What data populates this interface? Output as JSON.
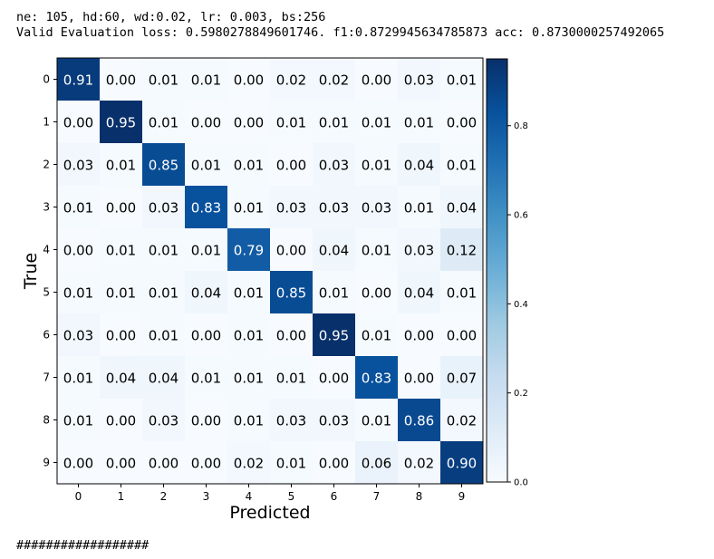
{
  "header": {
    "params_line": "ne: 105, hd:60, wd:0.02, lr: 0.003, bs:256",
    "eval_line": "Valid Evaluation loss: 0.5980278849601746. f1:0.8729945634785873 acc: 0.8730000257492065"
  },
  "footer": {
    "text": "##################"
  },
  "chart_data": {
    "type": "heatmap",
    "xlabel": "Predicted",
    "ylabel": "True",
    "x_categories": [
      "0",
      "1",
      "2",
      "3",
      "4",
      "5",
      "6",
      "7",
      "8",
      "9"
    ],
    "y_categories": [
      "0",
      "1",
      "2",
      "3",
      "4",
      "5",
      "6",
      "7",
      "8",
      "9"
    ],
    "values": [
      [
        0.91,
        0.0,
        0.01,
        0.01,
        0.0,
        0.02,
        0.02,
        0.0,
        0.03,
        0.01
      ],
      [
        0.0,
        0.95,
        0.01,
        0.0,
        0.0,
        0.01,
        0.01,
        0.01,
        0.01,
        0.0
      ],
      [
        0.03,
        0.01,
        0.85,
        0.01,
        0.01,
        0.0,
        0.03,
        0.01,
        0.04,
        0.01
      ],
      [
        0.01,
        0.0,
        0.03,
        0.83,
        0.01,
        0.03,
        0.03,
        0.03,
        0.01,
        0.04
      ],
      [
        0.0,
        0.01,
        0.01,
        0.01,
        0.79,
        0.0,
        0.04,
        0.01,
        0.03,
        0.12
      ],
      [
        0.01,
        0.01,
        0.01,
        0.04,
        0.01,
        0.85,
        0.01,
        0.0,
        0.04,
        0.01
      ],
      [
        0.03,
        0.0,
        0.01,
        0.0,
        0.01,
        0.0,
        0.95,
        0.01,
        0.0,
        0.0
      ],
      [
        0.01,
        0.04,
        0.04,
        0.01,
        0.01,
        0.01,
        0.0,
        0.83,
        0.0,
        0.07
      ],
      [
        0.01,
        0.0,
        0.03,
        0.0,
        0.01,
        0.03,
        0.03,
        0.01,
        0.86,
        0.02
      ],
      [
        0.0,
        0.0,
        0.0,
        0.0,
        0.02,
        0.01,
        0.0,
        0.06,
        0.02,
        0.9
      ]
    ],
    "colormap": "Blues",
    "colorbar": {
      "range": [
        0.0,
        0.95
      ],
      "ticks": [
        0.0,
        0.2,
        0.4,
        0.6,
        0.8
      ],
      "tick_labels": [
        "0.0",
        "0.2",
        "0.4",
        "0.6",
        "0.8"
      ]
    },
    "grid": false
  }
}
